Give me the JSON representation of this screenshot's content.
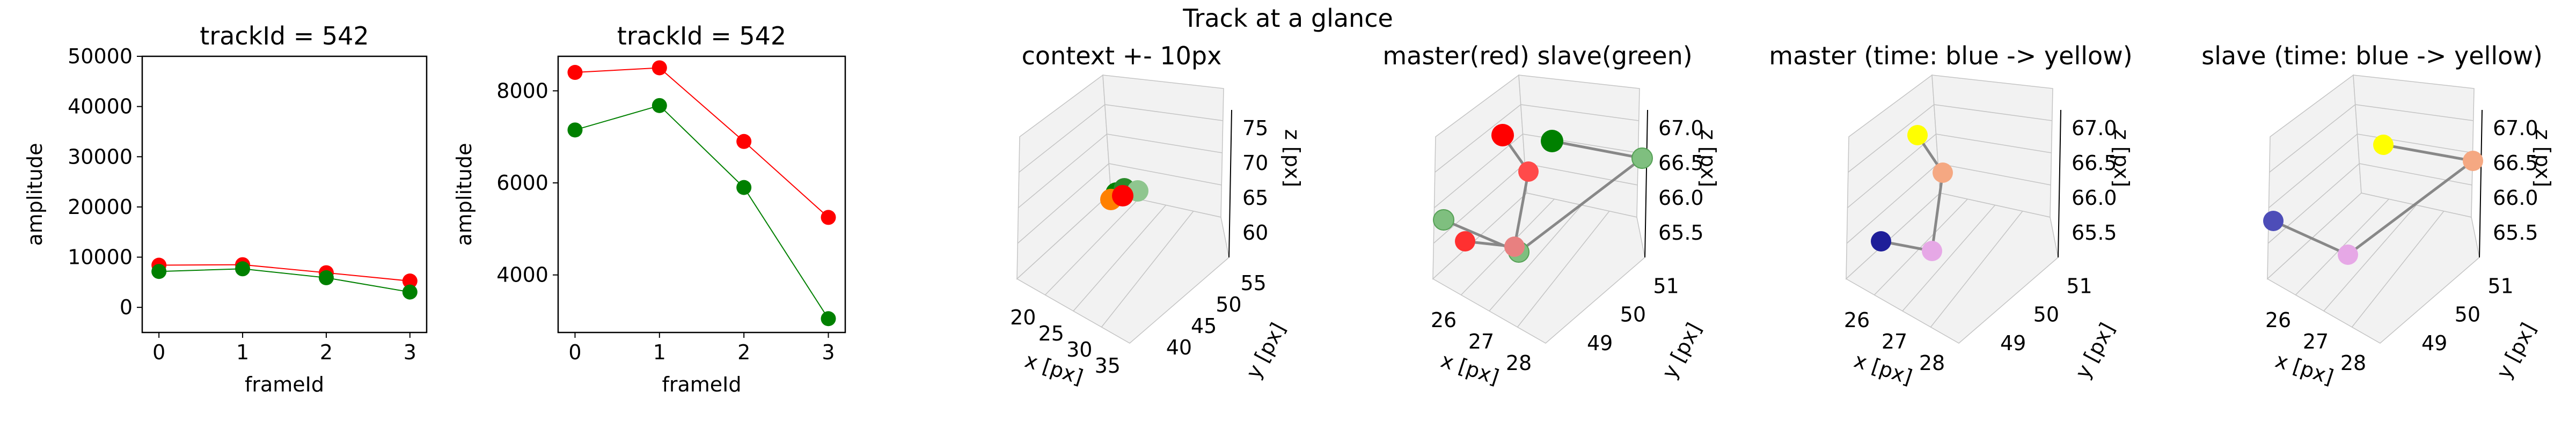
{
  "figure": {
    "suptitle": "Track at a glance"
  },
  "chart_data": [
    {
      "type": "line",
      "title": "trackId = 542",
      "xlabel": "frameId",
      "ylabel": "amplitude",
      "x": [
        0,
        1,
        2,
        3
      ],
      "xticks": [
        "0",
        "1",
        "2",
        "3"
      ],
      "yticks": [
        "0",
        "10000",
        "20000",
        "30000",
        "40000",
        "50000"
      ],
      "ytick_values": [
        0,
        10000,
        20000,
        30000,
        40000,
        50000
      ],
      "xlim": [
        -0.2,
        3.2
      ],
      "ylim": [
        -5000,
        50000
      ],
      "series": [
        {
          "color": "#ff0000",
          "values": [
            8400,
            8500,
            6900,
            5250
          ]
        },
        {
          "color": "#008000",
          "values": [
            7150,
            7680,
            5900,
            3050
          ]
        }
      ]
    },
    {
      "type": "line",
      "title": "trackId = 542",
      "xlabel": "frameId",
      "ylabel": "amplitude",
      "x": [
        0,
        1,
        2,
        3
      ],
      "xticks": [
        "0",
        "1",
        "2",
        "3"
      ],
      "yticks": [
        "4000",
        "6000",
        "8000"
      ],
      "ytick_values": [
        4000,
        6000,
        8000
      ],
      "xlim": [
        -0.2,
        3.2
      ],
      "ylim": [
        2750,
        8750
      ],
      "series": [
        {
          "color": "#ff0000",
          "values": [
            8400,
            8500,
            6900,
            5250
          ]
        },
        {
          "color": "#008000",
          "values": [
            7150,
            7680,
            5900,
            3050
          ]
        }
      ]
    },
    {
      "type": "scatter",
      "projection": "3d",
      "title": "context +- 10px",
      "xlabel": "x [px]",
      "ylabel": "y [px]",
      "zlabel": "z [px]",
      "xticks": [
        "20",
        "25",
        "30",
        "35"
      ],
      "yticks": [
        "40",
        "45",
        "50",
        "55"
      ],
      "zticks": [
        "60",
        "65",
        "70",
        "75"
      ],
      "points": [
        {
          "x": 26.5,
          "y": 50.2,
          "z": 66.0,
          "color": "#ff0000"
        },
        {
          "x": 27.0,
          "y": 50.5,
          "z": 66.4,
          "color": "#ff2020"
        },
        {
          "x": 27.8,
          "y": 50.8,
          "z": 66.9,
          "color": "#008000"
        },
        {
          "x": 26.3,
          "y": 49.8,
          "z": 65.7,
          "color": "#8fc68f"
        },
        {
          "x": 27.2,
          "y": 50.1,
          "z": 66.2,
          "color": "#8a8a00"
        }
      ]
    },
    {
      "type": "scatter",
      "projection": "3d",
      "title": "master(red) slave(green)",
      "xlabel": "x [px]",
      "ylabel": "y [px]",
      "zlabel": "z [px]",
      "xticks": [
        "26",
        "27",
        "28"
      ],
      "yticks": [
        "49",
        "50",
        "51"
      ],
      "zticks": [
        "65.5",
        "66.0",
        "66.5",
        "67.0"
      ]
    },
    {
      "type": "scatter",
      "projection": "3d",
      "title": "master (time: blue -> yellow)",
      "xlabel": "x [px]",
      "ylabel": "y [px]",
      "zlabel": "z [px]",
      "xticks": [
        "26",
        "27",
        "28"
      ],
      "yticks": [
        "49",
        "50",
        "51"
      ],
      "zticks": [
        "65.5",
        "66.0",
        "66.5",
        "67.0"
      ]
    },
    {
      "type": "scatter",
      "projection": "3d",
      "title": "slave (time: blue -> yellow)",
      "xlabel": "x [px]",
      "ylabel": "y [px]",
      "zlabel": "z [px]",
      "xticks": [
        "26",
        "27",
        "28"
      ],
      "yticks": [
        "49",
        "50",
        "51"
      ],
      "zticks": [
        "65.5",
        "66.0",
        "66.5",
        "67.0"
      ]
    }
  ]
}
